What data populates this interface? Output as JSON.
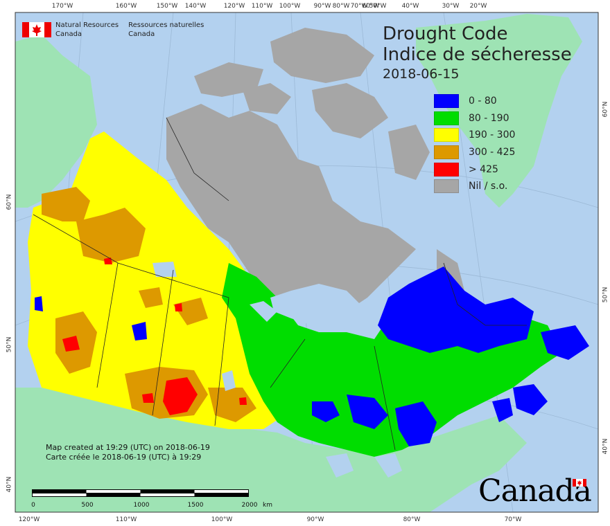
{
  "title": {
    "line1": "Drought Code",
    "line2": "Indice de sécheresse",
    "date": "2018-06-15"
  },
  "agency": {
    "en_line1": "Natural Resources",
    "en_line2": "Canada",
    "fr_line1": "Ressources naturelles",
    "fr_line2": "Canada"
  },
  "legend": [
    {
      "label": "0 - 80",
      "color": "#0000ff"
    },
    {
      "label": "80 - 190",
      "color": "#00dd00"
    },
    {
      "label": "190 - 300",
      "color": "#ffff00"
    },
    {
      "label": "300 - 425",
      "color": "#dd9900"
    },
    {
      "label": "> 425",
      "color": "#ff0000"
    },
    {
      "label": "Nil / s.o.",
      "color": "#a6a6a6"
    }
  ],
  "credit": {
    "en": "Map created at 19:29 (UTC) on 2018-06-19",
    "fr": "Carte créée le 2018-06-19 (UTC) à 19:29"
  },
  "scale": {
    "labels": [
      "0",
      "500",
      "1000",
      "1500",
      "2000"
    ],
    "unit": "km"
  },
  "top_lon_labels": [
    "170°W",
    "160°W",
    "150°W",
    "140°W",
    "120°W",
    "110°W",
    "100°W",
    "90°W",
    "80°W",
    "70°W",
    "60°W",
    "50°W",
    "40°W",
    "30°W",
    "20°W"
  ],
  "bottom_lon_labels": [
    "120°W",
    "110°W",
    "100°W",
    "90°W",
    "80°W",
    "70°W"
  ],
  "left_lat_labels": [
    "60°N",
    "50°N",
    "40°N"
  ],
  "right_lat_labels": [
    "60°N",
    "50°N",
    "40°N"
  ],
  "wordmark": "Canada",
  "colors": {
    "ocean": "#b3d1ef",
    "land_other": "#9ee3b4",
    "greenland": "#9ee3b4",
    "nil": "#a6a6a6"
  }
}
